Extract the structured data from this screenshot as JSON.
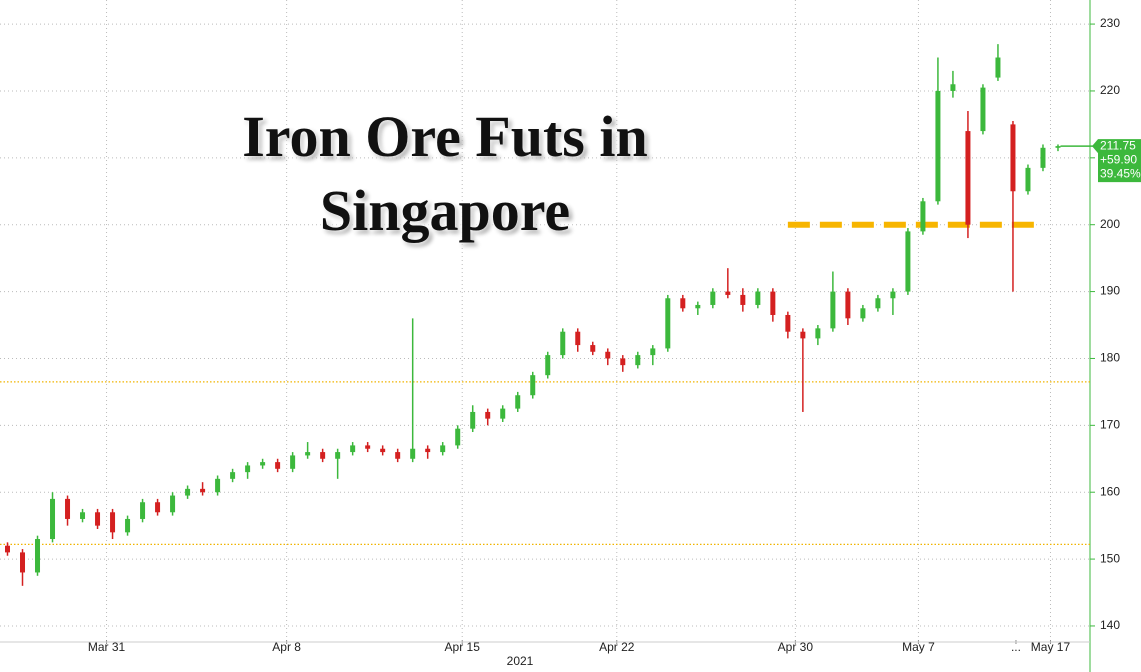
{
  "chart_data": {
    "type": "candlestick",
    "title": "Iron Ore Futs in Singapore",
    "xlabel": "2021",
    "xlim": [
      0,
      72.5
    ],
    "xticks": [
      {
        "value": 7.1,
        "label": "Mar 31"
      },
      {
        "value": 19.1,
        "label": "Apr 8"
      },
      {
        "value": 30.8,
        "label": "Apr 15"
      },
      {
        "value": 41.1,
        "label": "Apr 22"
      },
      {
        "value": 53,
        "label": "Apr 30"
      },
      {
        "value": 61.2,
        "label": "May 7"
      },
      {
        "value": 67.7,
        "label": "..."
      },
      {
        "value": 70,
        "label": "May 17"
      }
    ],
    "ylim": [
      137.9,
      233.6
    ],
    "yticks": [
      140,
      150,
      160,
      170,
      180,
      190,
      200,
      210,
      220,
      230
    ],
    "grid": true,
    "up_color": "#3cb83c",
    "down_color": "#d42020",
    "x": [
      0,
      1,
      2,
      3,
      4,
      5,
      6,
      7,
      8,
      9,
      10,
      11,
      12,
      13,
      14,
      15,
      16,
      17,
      18,
      19,
      20,
      21,
      22,
      23,
      24,
      25,
      26,
      27,
      28,
      29,
      30,
      31,
      32,
      33,
      34,
      35,
      36,
      37,
      38,
      39,
      40,
      41,
      42,
      43,
      44,
      45,
      46,
      47,
      48,
      49,
      50,
      51,
      52,
      53,
      54,
      55,
      56,
      57,
      58,
      59,
      60,
      61,
      62,
      63,
      64,
      65,
      66,
      67,
      68,
      69,
      70
    ],
    "open": [
      152,
      151,
      148,
      153,
      159,
      156,
      157,
      157,
      154,
      156,
      158.5,
      157,
      159.5,
      160.5,
      160,
      162,
      163,
      164,
      164.5,
      163.5,
      165.5,
      166,
      165,
      166,
      167,
      166.5,
      166,
      165,
      166.5,
      166,
      167,
      169.5,
      172,
      171,
      172.5,
      174.5,
      177.5,
      180.5,
      184,
      182,
      181,
      180,
      179,
      180.5,
      181.5,
      189,
      187.5,
      188,
      190,
      189.5,
      188,
      190,
      186.5,
      184,
      183,
      184.5,
      190,
      186,
      187.5,
      189,
      190,
      199,
      203.5,
      220,
      214,
      214,
      222,
      215,
      205,
      208.5,
      211.5
    ],
    "high": [
      152.5,
      151.5,
      153.5,
      160,
      159.5,
      157.5,
      157.5,
      157.5,
      156.5,
      159,
      159,
      160,
      161,
      161.5,
      162.5,
      163.5,
      164.5,
      165,
      165,
      166,
      167.5,
      166.5,
      166.5,
      167.5,
      167.5,
      167,
      166.5,
      186,
      167,
      167.5,
      170,
      173,
      172.5,
      173,
      175,
      178,
      181,
      184.5,
      184.5,
      182.5,
      181.5,
      180.5,
      181,
      182,
      189.5,
      189.5,
      188.5,
      190.5,
      193.5,
      190.5,
      190.5,
      190.5,
      187,
      184.5,
      185,
      193,
      190.5,
      188,
      189.5,
      190.5,
      199.5,
      204,
      225,
      223,
      217,
      221,
      227,
      215.5,
      209,
      212,
      212
    ],
    "low": [
      150.5,
      146,
      147.5,
      152.5,
      155,
      155.5,
      154.5,
      153,
      153.5,
      155.5,
      156.5,
      156.5,
      159,
      159.5,
      159.5,
      161.5,
      162,
      163.5,
      163,
      163,
      165,
      164.5,
      162,
      165.5,
      166,
      165.5,
      164.5,
      164.5,
      165,
      165.5,
      166.5,
      169,
      170,
      170.5,
      172,
      174,
      177,
      180,
      181,
      180.5,
      179,
      178,
      178.5,
      179,
      181,
      187,
      186.5,
      187.5,
      189,
      187,
      187.5,
      185.5,
      183,
      172,
      182,
      184,
      185,
      185.5,
      187,
      186.5,
      189.5,
      198.5,
      203,
      219,
      198,
      213.5,
      221.5,
      190,
      204.5,
      208,
      211
    ],
    "close": [
      151,
      148,
      153,
      159,
      156,
      157,
      155,
      154,
      156,
      158.5,
      157,
      159.5,
      160.5,
      160,
      162,
      163,
      164,
      164.5,
      163.5,
      165.5,
      166,
      165,
      166,
      167,
      166.5,
      166,
      165,
      166.5,
      166,
      167,
      169.5,
      172,
      171,
      172.5,
      174.5,
      177.5,
      180.5,
      184,
      182,
      181,
      180,
      179,
      180.5,
      181.5,
      189,
      187.5,
      188,
      190,
      189.5,
      188,
      190,
      186.5,
      184,
      183,
      184.5,
      190,
      186,
      187.5,
      189,
      190,
      199,
      203.5,
      220,
      221,
      200,
      220.5,
      225,
      205,
      208.5,
      211.5,
      211.75
    ],
    "reference_lines": [
      {
        "value": 176.5,
        "color": "#f0b400",
        "style": "dotted"
      },
      {
        "value": 152.2,
        "color": "#f0b400",
        "style": "dotted"
      },
      {
        "value": 200,
        "color": "#f7b500",
        "style": "dashed",
        "xrange": [
          52.5,
          69.5
        ]
      }
    ],
    "last_price": {
      "value": 211.75,
      "color": "#3cb83c",
      "change": {
        "value": 59.9,
        "label": "+59.90"
      },
      "change_pct": {
        "value": 39.45,
        "label": "39.45%"
      }
    }
  }
}
